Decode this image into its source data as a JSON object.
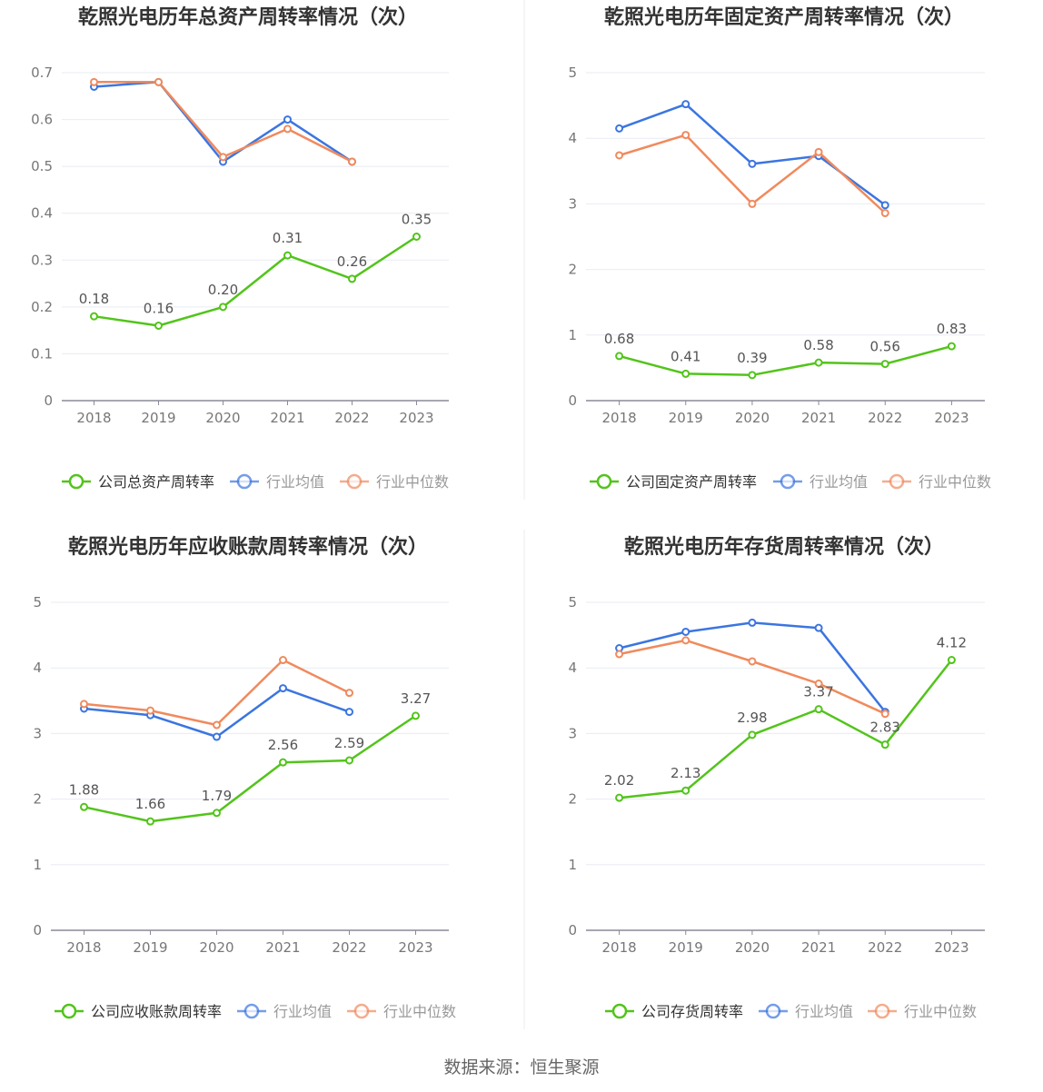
{
  "footer": {
    "source": "数据来源：恒生聚源"
  },
  "colors": {
    "company": "#52c41a",
    "industry_avg": "#3b75e0",
    "industry_median": "#f08a5d",
    "grid": "#e8ebf2",
    "axis": "#8a8a99",
    "title": "#333333",
    "label": "#555555"
  },
  "chart_data": [
    {
      "type": "line",
      "title": "乾照光电历年总资产周转率情况（次）",
      "categories": [
        "2018",
        "2019",
        "2020",
        "2021",
        "2022",
        "2023"
      ],
      "ylim": [
        0,
        0.7
      ],
      "yticks": [
        "0",
        "0.1",
        "0.2",
        "0.3",
        "0.4",
        "0.5",
        "0.6",
        "0.7"
      ],
      "legend_position": "bottom",
      "grid": true,
      "series": [
        {
          "name": "公司总资产周转率",
          "role": "company",
          "values": [
            0.18,
            0.16,
            0.2,
            0.31,
            0.26,
            0.35
          ],
          "labels": [
            "0.18",
            "0.16",
            "0.20",
            "0.31",
            "0.26",
            "0.35"
          ]
        },
        {
          "name": "行业均值",
          "role": "industry_avg",
          "values": [
            0.67,
            0.68,
            0.51,
            0.6,
            0.51,
            null
          ]
        },
        {
          "name": "行业中位数",
          "role": "industry_median",
          "values": [
            0.68,
            0.68,
            0.52,
            0.58,
            0.51,
            null
          ]
        }
      ]
    },
    {
      "type": "line",
      "title": "乾照光电历年固定资产周转率情况（次）",
      "categories": [
        "2018",
        "2019",
        "2020",
        "2021",
        "2022",
        "2023"
      ],
      "ylim": [
        0,
        5
      ],
      "yticks": [
        "0",
        "1",
        "2",
        "3",
        "4",
        "5"
      ],
      "legend_position": "bottom",
      "grid": true,
      "series": [
        {
          "name": "公司固定资产周转率",
          "role": "company",
          "values": [
            0.68,
            0.41,
            0.39,
            0.58,
            0.56,
            0.83
          ],
          "labels": [
            "0.68",
            "0.41",
            "0.39",
            "0.58",
            "0.56",
            "0.83"
          ]
        },
        {
          "name": "行业均值",
          "role": "industry_avg",
          "values": [
            4.15,
            4.52,
            3.61,
            3.73,
            2.98,
            null
          ]
        },
        {
          "name": "行业中位数",
          "role": "industry_median",
          "values": [
            3.74,
            4.05,
            3.0,
            3.79,
            2.86,
            null
          ]
        }
      ]
    },
    {
      "type": "line",
      "title": "乾照光电历年应收账款周转率情况（次）",
      "categories": [
        "2018",
        "2019",
        "2020",
        "2021",
        "2022",
        "2023"
      ],
      "ylim": [
        0,
        5
      ],
      "yticks": [
        "0",
        "1",
        "2",
        "3",
        "4",
        "5"
      ],
      "legend_position": "bottom",
      "grid": true,
      "series": [
        {
          "name": "公司应收账款周转率",
          "role": "company",
          "values": [
            1.88,
            1.66,
            1.79,
            2.56,
            2.59,
            3.27
          ],
          "labels": [
            "1.88",
            "1.66",
            "1.79",
            "2.56",
            "2.59",
            "3.27"
          ]
        },
        {
          "name": "行业均值",
          "role": "industry_avg",
          "values": [
            3.38,
            3.28,
            2.95,
            3.69,
            3.33,
            null
          ]
        },
        {
          "name": "行业中位数",
          "role": "industry_median",
          "values": [
            3.45,
            3.35,
            3.13,
            4.12,
            3.62,
            null
          ]
        }
      ]
    },
    {
      "type": "line",
      "title": "乾照光电历年存货周转率情况（次）",
      "categories": [
        "2018",
        "2019",
        "2020",
        "2021",
        "2022",
        "2023"
      ],
      "ylim": [
        0,
        5
      ],
      "yticks": [
        "0",
        "1",
        "2",
        "3",
        "4",
        "5"
      ],
      "legend_position": "bottom",
      "grid": true,
      "series": [
        {
          "name": "公司存货周转率",
          "role": "company",
          "values": [
            2.02,
            2.13,
            2.98,
            3.37,
            2.83,
            4.12
          ],
          "labels": [
            "2.02",
            "2.13",
            "2.98",
            "3.37",
            "2.83",
            "4.12"
          ]
        },
        {
          "name": "行业均值",
          "role": "industry_avg",
          "values": [
            4.3,
            4.55,
            4.69,
            4.61,
            3.33,
            null
          ]
        },
        {
          "name": "行业中位数",
          "role": "industry_median",
          "values": [
            4.21,
            4.42,
            4.1,
            3.76,
            3.3,
            null
          ]
        }
      ]
    }
  ]
}
